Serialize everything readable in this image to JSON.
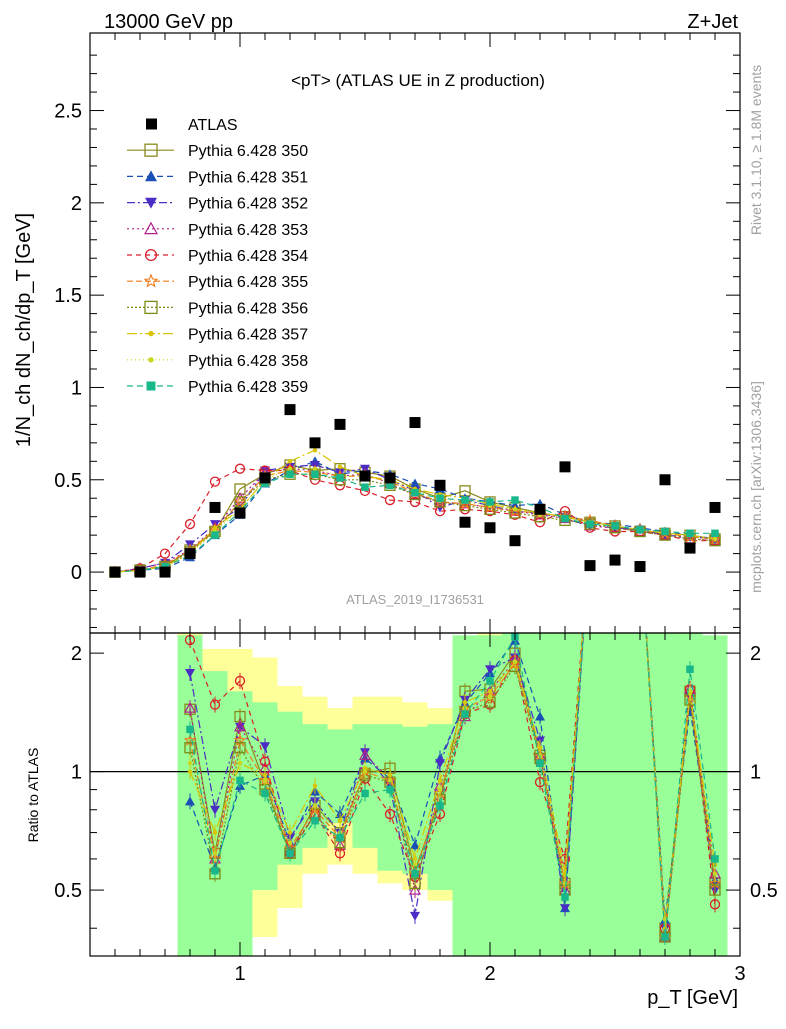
{
  "header": {
    "left": "13000 GeV pp",
    "right": "Z+Jet"
  },
  "side": {
    "rivet": "Rivet 3.1.10, ≥ 1.8M events",
    "mcplots": "mcplots.cern.ch [arXiv:1306.3436]"
  },
  "chart_data": {
    "type": "line",
    "title": "<pT> (ATLAS UE in Z production)",
    "analysis_label": "ATLAS_2019_I1736531",
    "ylabel_main": "1/N_ch dN_ch/dp_T [GeV]",
    "ylabel_ratio": "Ratio to ATLAS",
    "xlabel": "p_T [GeV]",
    "xlim": [
      0.4,
      3.0
    ],
    "ylim_main": [
      -0.33,
      2.92
    ],
    "ylim_ratio": [
      0.34,
      2.25
    ],
    "x_ticks": [
      "1",
      "2",
      "3"
    ],
    "y_ticks_main": [
      "0",
      "0.5",
      "1",
      "1.5",
      "2",
      "2.5"
    ],
    "y_ticks_ratio": [
      "0.5",
      "1",
      "2"
    ],
    "legend_position": "top-left",
    "x": [
      0.5,
      0.6,
      0.7,
      0.8,
      0.9,
      1.0,
      1.1,
      1.2,
      1.3,
      1.4,
      1.5,
      1.6,
      1.7,
      1.8,
      1.9,
      2.0,
      2.1,
      2.2,
      2.3,
      2.4,
      2.5,
      2.6,
      2.7,
      2.8,
      2.9
    ],
    "data": {
      "name": "ATLAS",
      "values": [
        0.0,
        0.0,
        0.0,
        0.1,
        0.35,
        0.32,
        0.51,
        0.88,
        0.7,
        0.8,
        0.52,
        0.51,
        0.81,
        0.47,
        0.27,
        0.24,
        0.17,
        0.34,
        0.57,
        0.035,
        0.065,
        0.03,
        0.5,
        0.13,
        0.35
      ]
    },
    "band_edges": [
      0.75,
      0.85,
      0.95,
      1.05,
      1.15,
      1.25,
      1.35,
      1.45,
      1.55,
      1.65,
      1.75,
      1.85,
      1.95,
      2.05,
      2.15,
      2.25,
      2.35,
      2.45,
      2.55,
      2.65,
      2.75,
      2.85,
      2.95
    ],
    "band_yellow": {
      "low": [
        0.3,
        0.3,
        0.34,
        0.38,
        0.45,
        0.55,
        0.58,
        0.55,
        0.52,
        0.5,
        0.47,
        0.34,
        0.34,
        0.34,
        0.34,
        0.34,
        0.34,
        0.34,
        0.34,
        0.34,
        0.34,
        0.34
      ],
      "high": [
        2.25,
        2.05,
        2.05,
        1.95,
        1.65,
        1.55,
        1.45,
        1.55,
        1.55,
        1.5,
        1.45,
        2.2,
        2.25,
        2.25,
        2.25,
        2.25,
        2.25,
        2.25,
        2.25,
        2.25,
        2.25,
        2.12
      ]
    },
    "band_green": {
      "low": [
        0.34,
        0.34,
        0.34,
        0.5,
        0.58,
        0.64,
        0.74,
        0.64,
        0.56,
        0.55,
        0.5,
        0.34,
        0.34,
        0.34,
        0.34,
        0.34,
        0.34,
        0.34,
        0.34,
        0.34,
        0.34,
        0.34
      ],
      "high": [
        2.22,
        1.8,
        1.6,
        1.5,
        1.42,
        1.32,
        1.28,
        1.32,
        1.32,
        1.3,
        1.32,
        2.22,
        2.22,
        2.25,
        2.25,
        2.25,
        2.25,
        2.25,
        2.25,
        2.25,
        2.25,
        2.22
      ]
    },
    "series": [
      {
        "name": "Pythia 6.428 350",
        "color": "#8a8a1e",
        "marker": "square-open",
        "dash": "solid",
        "values": [
          0.0,
          0.01,
          0.03,
          0.12,
          0.22,
          0.45,
          0.53,
          0.58,
          0.55,
          0.56,
          0.54,
          0.52,
          0.45,
          0.4,
          0.44,
          0.38,
          0.35,
          0.32,
          0.3,
          0.27,
          0.25,
          0.22,
          0.21,
          0.2,
          0.18
        ],
        "ratio": [
          1.44,
          0.62,
          1.38,
          0.93,
          0.62,
          0.82,
          0.7,
          0.99,
          1.02,
          0.56,
          0.85,
          1.6,
          1.62,
          2.0,
          1.1,
          0.52,
          4.0,
          4.0,
          4.0,
          0.4,
          1.6,
          0.52
        ]
      },
      {
        "name": "Pythia 6.428 351",
        "color": "#1a4fb5",
        "marker": "triangle-up",
        "dash": "6,4",
        "values": [
          0.0,
          0.01,
          0.02,
          0.08,
          0.2,
          0.31,
          0.48,
          0.55,
          0.6,
          0.53,
          0.55,
          0.53,
          0.48,
          0.45,
          0.4,
          0.38,
          0.36,
          0.37,
          0.31,
          0.27,
          0.26,
          0.24,
          0.22,
          0.2,
          0.18
        ],
        "ratio": [
          0.84,
          0.57,
          0.92,
          0.98,
          0.66,
          0.89,
          0.78,
          1.08,
          0.96,
          0.65,
          1.08,
          1.49,
          1.78,
          2.15,
          1.38,
          0.45,
          4.0,
          4.0,
          4.0,
          0.42,
          1.45,
          0.53
        ]
      },
      {
        "name": "Pythia 6.428 352",
        "color": "#4b2cc4",
        "marker": "triangle-down",
        "dash": "8,3,2,3",
        "values": [
          0.0,
          0.02,
          0.05,
          0.15,
          0.26,
          0.35,
          0.55,
          0.57,
          0.58,
          0.54,
          0.56,
          0.5,
          0.44,
          0.35,
          0.39,
          0.36,
          0.33,
          0.32,
          0.29,
          0.25,
          0.24,
          0.23,
          0.2,
          0.19,
          0.18
        ],
        "ratio": [
          1.78,
          0.8,
          1.3,
          1.16,
          0.68,
          0.84,
          0.7,
          1.12,
          0.92,
          0.43,
          1.05,
          1.52,
          1.82,
          1.95,
          1.2,
          0.45,
          4.0,
          4.0,
          4.0,
          0.4,
          1.55,
          0.5
        ]
      },
      {
        "name": "Pythia 6.428 353",
        "color": "#b0208a",
        "marker": "triangle-up-open",
        "dash": "2,3",
        "values": [
          0.0,
          0.02,
          0.05,
          0.12,
          0.24,
          0.4,
          0.54,
          0.56,
          0.55,
          0.52,
          0.53,
          0.48,
          0.42,
          0.38,
          0.37,
          0.35,
          0.33,
          0.31,
          0.29,
          0.25,
          0.24,
          0.22,
          0.2,
          0.18,
          0.17
        ],
        "ratio": [
          1.45,
          0.6,
          1.3,
          1.02,
          0.63,
          0.78,
          0.65,
          1.1,
          0.96,
          0.5,
          0.92,
          1.38,
          1.6,
          1.92,
          1.1,
          0.5,
          4.0,
          4.0,
          4.0,
          0.38,
          1.62,
          0.55
        ]
      },
      {
        "name": "Pythia 6.428 354",
        "color": "#d8202a",
        "marker": "circle-open",
        "dash": "5,4",
        "values": [
          0.0,
          0.02,
          0.1,
          0.26,
          0.49,
          0.56,
          0.55,
          0.55,
          0.5,
          0.47,
          0.44,
          0.39,
          0.38,
          0.33,
          0.34,
          0.33,
          0.31,
          0.27,
          0.33,
          0.24,
          0.22,
          0.22,
          0.2,
          0.17,
          0.17
        ],
        "ratio": [
          2.16,
          1.48,
          1.7,
          1.06,
          0.62,
          0.78,
          0.62,
          0.96,
          0.78,
          0.54,
          0.78,
          1.4,
          1.48,
          1.92,
          0.94,
          0.6,
          4.0,
          4.0,
          4.0,
          0.4,
          1.62,
          0.46
        ]
      },
      {
        "name": "Pythia 6.428 355",
        "color": "#f07a1a",
        "marker": "star",
        "dash": "6,3",
        "values": [
          0.0,
          0.01,
          0.04,
          0.12,
          0.23,
          0.38,
          0.52,
          0.55,
          0.54,
          0.52,
          0.52,
          0.49,
          0.43,
          0.38,
          0.37,
          0.35,
          0.33,
          0.32,
          0.3,
          0.28,
          0.25,
          0.23,
          0.21,
          0.19,
          0.18
        ],
        "ratio": [
          1.2,
          0.6,
          1.2,
          0.95,
          0.64,
          0.8,
          0.68,
          1.0,
          0.95,
          0.55,
          0.88,
          1.45,
          1.55,
          1.88,
          1.1,
          0.52,
          4.0,
          4.0,
          4.0,
          0.38,
          1.55,
          0.52
        ]
      },
      {
        "name": "Pythia 6.428 356",
        "color": "#7e8a16",
        "marker": "square-open",
        "dash": "2,2",
        "values": [
          0.0,
          0.01,
          0.03,
          0.11,
          0.22,
          0.38,
          0.5,
          0.53,
          0.53,
          0.5,
          0.5,
          0.47,
          0.42,
          0.38,
          0.36,
          0.34,
          0.32,
          0.3,
          0.28,
          0.26,
          0.24,
          0.22,
          0.2,
          0.18,
          0.17
        ],
        "ratio": [
          1.15,
          0.55,
          1.15,
          0.9,
          0.62,
          0.78,
          0.66,
          0.98,
          0.94,
          0.52,
          0.85,
          1.42,
          1.5,
          1.85,
          1.08,
          0.5,
          4.0,
          4.0,
          4.0,
          0.38,
          1.52,
          0.5
        ]
      },
      {
        "name": "Pythia 6.428 357",
        "color": "#d8c400",
        "marker": "dot",
        "dash": "10,3,2,3",
        "values": [
          0.0,
          0.01,
          0.03,
          0.1,
          0.24,
          0.34,
          0.5,
          0.6,
          0.66,
          0.57,
          0.52,
          0.5,
          0.45,
          0.42,
          0.4,
          0.37,
          0.34,
          0.32,
          0.3,
          0.27,
          0.25,
          0.23,
          0.21,
          0.2,
          0.18
        ],
        "ratio": [
          1.0,
          0.7,
          1.05,
          0.98,
          0.7,
          0.92,
          0.75,
          1.02,
          0.98,
          0.6,
          0.95,
          1.5,
          1.6,
          1.9,
          1.15,
          0.55,
          4.0,
          4.0,
          4.0,
          0.4,
          1.58,
          0.58
        ]
      },
      {
        "name": "Pythia 6.428 358",
        "color": "#c8d822",
        "marker": "dot",
        "dash": "1,3",
        "values": [
          0.0,
          0.01,
          0.03,
          0.1,
          0.22,
          0.34,
          0.5,
          0.56,
          0.56,
          0.52,
          0.52,
          0.49,
          0.44,
          0.4,
          0.38,
          0.36,
          0.34,
          0.31,
          0.29,
          0.27,
          0.25,
          0.23,
          0.21,
          0.2,
          0.18
        ],
        "ratio": [
          1.05,
          0.62,
          1.05,
          0.95,
          0.66,
          0.82,
          0.7,
          1.0,
          0.95,
          0.58,
          0.9,
          1.45,
          1.55,
          1.9,
          1.1,
          0.52,
          4.0,
          4.0,
          4.0,
          0.42,
          1.6,
          0.55
        ]
      },
      {
        "name": "Pythia 6.428 359",
        "color": "#18b88a",
        "marker": "square",
        "dash": "6,4",
        "values": [
          0.0,
          0.01,
          0.03,
          0.09,
          0.2,
          0.33,
          0.48,
          0.53,
          0.53,
          0.51,
          0.46,
          0.47,
          0.43,
          0.4,
          0.39,
          0.38,
          0.39,
          0.35,
          0.29,
          0.26,
          0.25,
          0.23,
          0.22,
          0.21,
          0.21
        ],
        "ratio": [
          1.28,
          0.56,
          0.95,
          0.88,
          0.62,
          0.75,
          0.68,
          0.88,
          0.9,
          0.55,
          0.82,
          1.4,
          1.7,
          2.2,
          1.05,
          0.48,
          4.0,
          4.0,
          4.0,
          0.38,
          1.82,
          0.6
        ]
      }
    ]
  }
}
